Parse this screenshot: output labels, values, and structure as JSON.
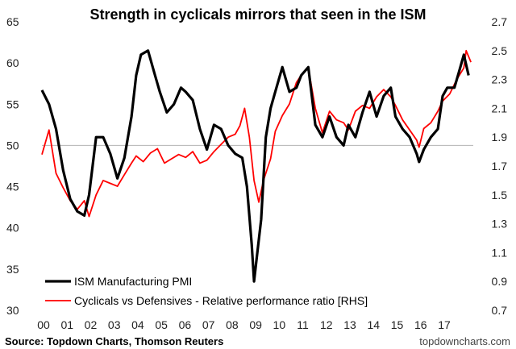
{
  "chart_data": {
    "type": "line",
    "title": "Strength in cyclicals mirrors that seen in the ISM",
    "x_tick_labels": [
      "00",
      "01",
      "02",
      "03",
      "04",
      "05",
      "06",
      "07",
      "08",
      "09",
      "10",
      "11",
      "12",
      "13",
      "14",
      "15",
      "16",
      "17"
    ],
    "x_range": [
      2000.0,
      2018.3
    ],
    "left_axis": {
      "range": [
        30,
        65
      ],
      "ticks": [
        30,
        35,
        40,
        45,
        50,
        55,
        60,
        65
      ],
      "reference_line": 50
    },
    "right_axis": {
      "range": [
        0.7,
        2.7
      ],
      "ticks": [
        "0.7",
        "0.9",
        "1.1",
        "1.3",
        "1.5",
        "1.7",
        "1.9",
        "2.1",
        "2.3",
        "2.5",
        "2.7"
      ]
    },
    "series": [
      {
        "name": "ISM Manufacturing PMI",
        "axis": "left",
        "color": "#000000",
        "x": [
          2000.0,
          2000.3,
          2000.6,
          2000.9,
          2001.2,
          2001.5,
          2001.8,
          2002.0,
          2002.3,
          2002.6,
          2002.9,
          2003.2,
          2003.5,
          2003.8,
          2004.0,
          2004.2,
          2004.5,
          2004.8,
          2005.0,
          2005.3,
          2005.6,
          2005.9,
          2006.1,
          2006.4,
          2006.7,
          2007.0,
          2007.3,
          2007.6,
          2007.9,
          2008.2,
          2008.5,
          2008.7,
          2008.9,
          2009.0,
          2009.1,
          2009.3,
          2009.5,
          2009.7,
          2009.9,
          2010.2,
          2010.5,
          2010.8,
          2011.0,
          2011.3,
          2011.6,
          2011.9,
          2012.2,
          2012.5,
          2012.8,
          2013.0,
          2013.3,
          2013.6,
          2013.9,
          2014.2,
          2014.5,
          2014.8,
          2015.0,
          2015.3,
          2015.6,
          2015.9,
          2016.0,
          2016.2,
          2016.5,
          2016.8,
          2017.0,
          2017.2,
          2017.5,
          2017.7,
          2017.9,
          2018.1
        ],
        "y": [
          56.7,
          55,
          52,
          47,
          43.5,
          42,
          41.5,
          44,
          51,
          51,
          49,
          46,
          48.5,
          53.5,
          58.5,
          61,
          61.5,
          58.5,
          56.5,
          54,
          55,
          57,
          56.5,
          55.5,
          52,
          49.5,
          52.5,
          52,
          50,
          49,
          48.5,
          45,
          38,
          33.5,
          36,
          41,
          51,
          54.5,
          56.5,
          59.5,
          56.5,
          57,
          58.5,
          59.5,
          52.5,
          51,
          53.5,
          51,
          50,
          52.5,
          51,
          54,
          56.5,
          53.5,
          56,
          57,
          53.5,
          52,
          51,
          49,
          48,
          49.5,
          51,
          52,
          56,
          57,
          57,
          59,
          61,
          58.5
        ]
      },
      {
        "name": "Cyclicals vs Defensives - Relative performance ratio [RHS]",
        "axis": "right",
        "color": "#ff0000",
        "x": [
          2000.0,
          2000.3,
          2000.6,
          2000.9,
          2001.2,
          2001.5,
          2001.8,
          2002.0,
          2002.3,
          2002.6,
          2002.9,
          2003.2,
          2003.5,
          2003.8,
          2004.0,
          2004.3,
          2004.6,
          2004.9,
          2005.2,
          2005.5,
          2005.8,
          2006.1,
          2006.4,
          2006.7,
          2007.0,
          2007.3,
          2007.6,
          2007.9,
          2008.2,
          2008.4,
          2008.6,
          2008.8,
          2009.0,
          2009.2,
          2009.4,
          2009.7,
          2009.9,
          2010.2,
          2010.5,
          2010.8,
          2011.0,
          2011.3,
          2011.6,
          2011.9,
          2012.2,
          2012.5,
          2012.8,
          2013.0,
          2013.3,
          2013.6,
          2013.9,
          2014.2,
          2014.5,
          2014.8,
          2015.0,
          2015.3,
          2015.6,
          2015.9,
          2016.0,
          2016.2,
          2016.5,
          2016.8,
          2017.0,
          2017.3,
          2017.6,
          2017.9,
          2018.0,
          2018.2
        ],
        "y": [
          1.78,
          1.95,
          1.65,
          1.55,
          1.46,
          1.4,
          1.46,
          1.35,
          1.5,
          1.6,
          1.58,
          1.56,
          1.64,
          1.72,
          1.77,
          1.73,
          1.79,
          1.82,
          1.72,
          1.75,
          1.78,
          1.76,
          1.8,
          1.72,
          1.74,
          1.8,
          1.85,
          1.9,
          1.92,
          1.98,
          2.1,
          1.9,
          1.6,
          1.45,
          1.6,
          1.75,
          1.94,
          2.05,
          2.13,
          2.28,
          2.33,
          2.38,
          2.1,
          1.93,
          2.08,
          2.02,
          2.0,
          1.95,
          2.08,
          2.12,
          2.1,
          2.18,
          2.23,
          2.18,
          2.12,
          2.02,
          1.95,
          1.88,
          1.83,
          1.96,
          2.0,
          2.08,
          2.15,
          2.2,
          2.3,
          2.38,
          2.5,
          2.42
        ]
      }
    ],
    "source": "Source: Topdown Charts, Thomson Reuters",
    "credit": "topdowncharts.com"
  }
}
